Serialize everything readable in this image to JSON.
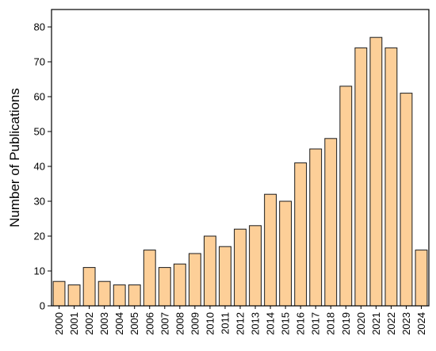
{
  "chart_data": {
    "type": "bar",
    "title": "",
    "xlabel": "",
    "ylabel": "Number of Publications",
    "ylim": [
      0,
      85
    ],
    "yticks": [
      0,
      10,
      20,
      30,
      40,
      50,
      60,
      70,
      80
    ],
    "grid": false,
    "legend": "none",
    "categories": [
      "2000",
      "2001",
      "2002",
      "2003",
      "2004",
      "2005",
      "2006",
      "2007",
      "2008",
      "2009",
      "2010",
      "2011",
      "2012",
      "2013",
      "2014",
      "2015",
      "2016",
      "2017",
      "2018",
      "2019",
      "2020",
      "2021",
      "2022",
      "2023",
      "2024"
    ],
    "values": [
      7,
      6,
      11,
      7,
      6,
      6,
      16,
      11,
      12,
      15,
      20,
      17,
      22,
      23,
      32,
      30,
      41,
      45,
      48,
      63,
      74,
      77,
      74,
      61,
      16
    ],
    "bar_fill": "#FDCF98",
    "bar_stroke": "#1a1a1a"
  }
}
